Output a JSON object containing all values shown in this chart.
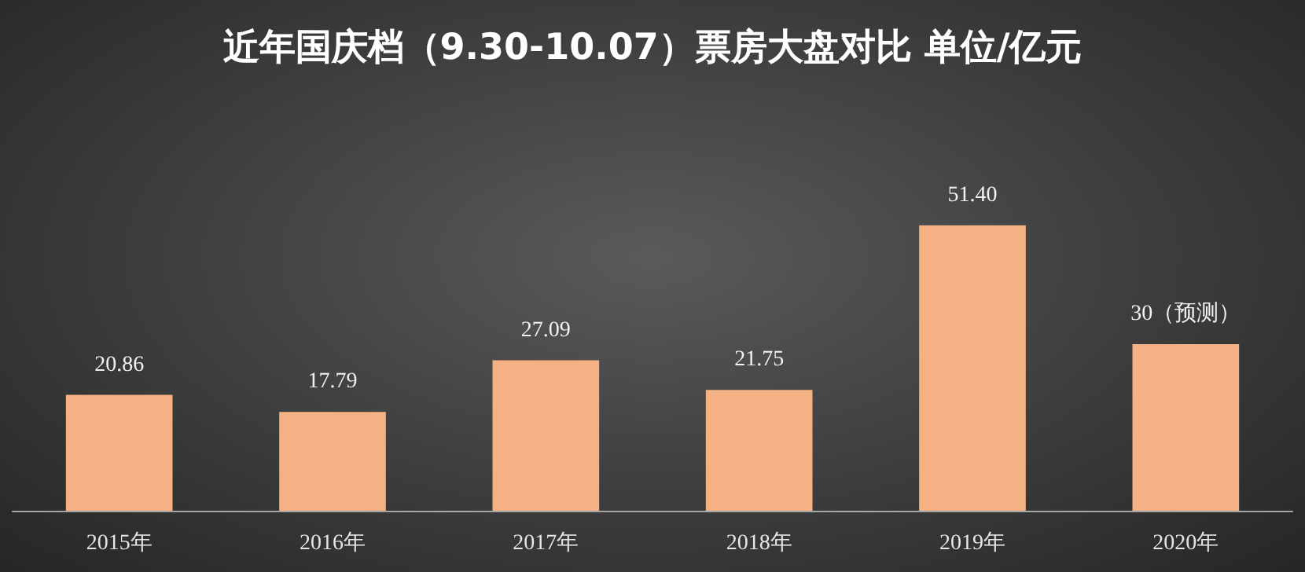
{
  "chart_data": {
    "type": "bar",
    "title": "近年国庆档（9.30-10.07）票房大盘对比 单位/亿元",
    "categories": [
      "2015年",
      "2016年",
      "2017年",
      "2018年",
      "2019年",
      "2020年"
    ],
    "values": [
      20.86,
      17.79,
      27.09,
      21.75,
      51.4,
      30
    ],
    "value_labels": [
      "20.86",
      "17.79",
      "27.09",
      "21.75",
      "51.40",
      "30（预测）"
    ],
    "color": "#f4b183"
  }
}
